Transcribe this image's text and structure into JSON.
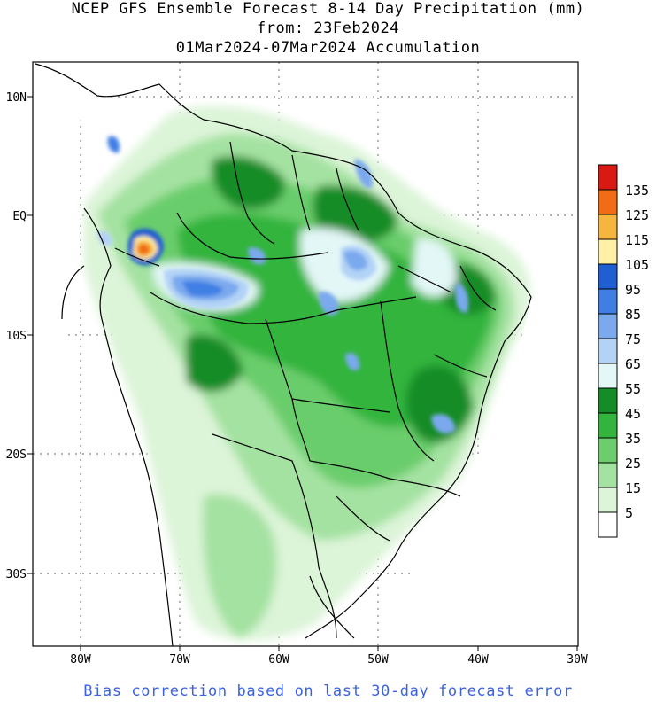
{
  "title": {
    "line1": "NCEP GFS Ensemble Forecast 8-14 Day Precipitation (mm)",
    "line2": "from: 23Feb2024",
    "line3": "01Mar2024-07Mar2024 Accumulation"
  },
  "axes": {
    "lat_labels": [
      "10N",
      "EQ",
      "10S",
      "20S",
      "30S"
    ],
    "lon_labels": [
      "80W",
      "70W",
      "60W",
      "50W",
      "40W",
      "30W"
    ]
  },
  "legend": {
    "labels": [
      "135",
      "125",
      "115",
      "105",
      "95",
      "85",
      "75",
      "65",
      "55",
      "45",
      "35",
      "25",
      "15",
      "5"
    ],
    "colors": [
      "#d81a12",
      "#f26b16",
      "#f6b63e",
      "#fff0a6",
      "#1f5fd2",
      "#3f7fe4",
      "#7aa9ee",
      "#b3d3f6",
      "#e3f7f7",
      "#158c25",
      "#33b43c",
      "#6bcd6c",
      "#a4e2a1",
      "#dcf4d8",
      "#ffffff"
    ]
  },
  "footer": "Bias correction based on last 30-day forecast error"
}
